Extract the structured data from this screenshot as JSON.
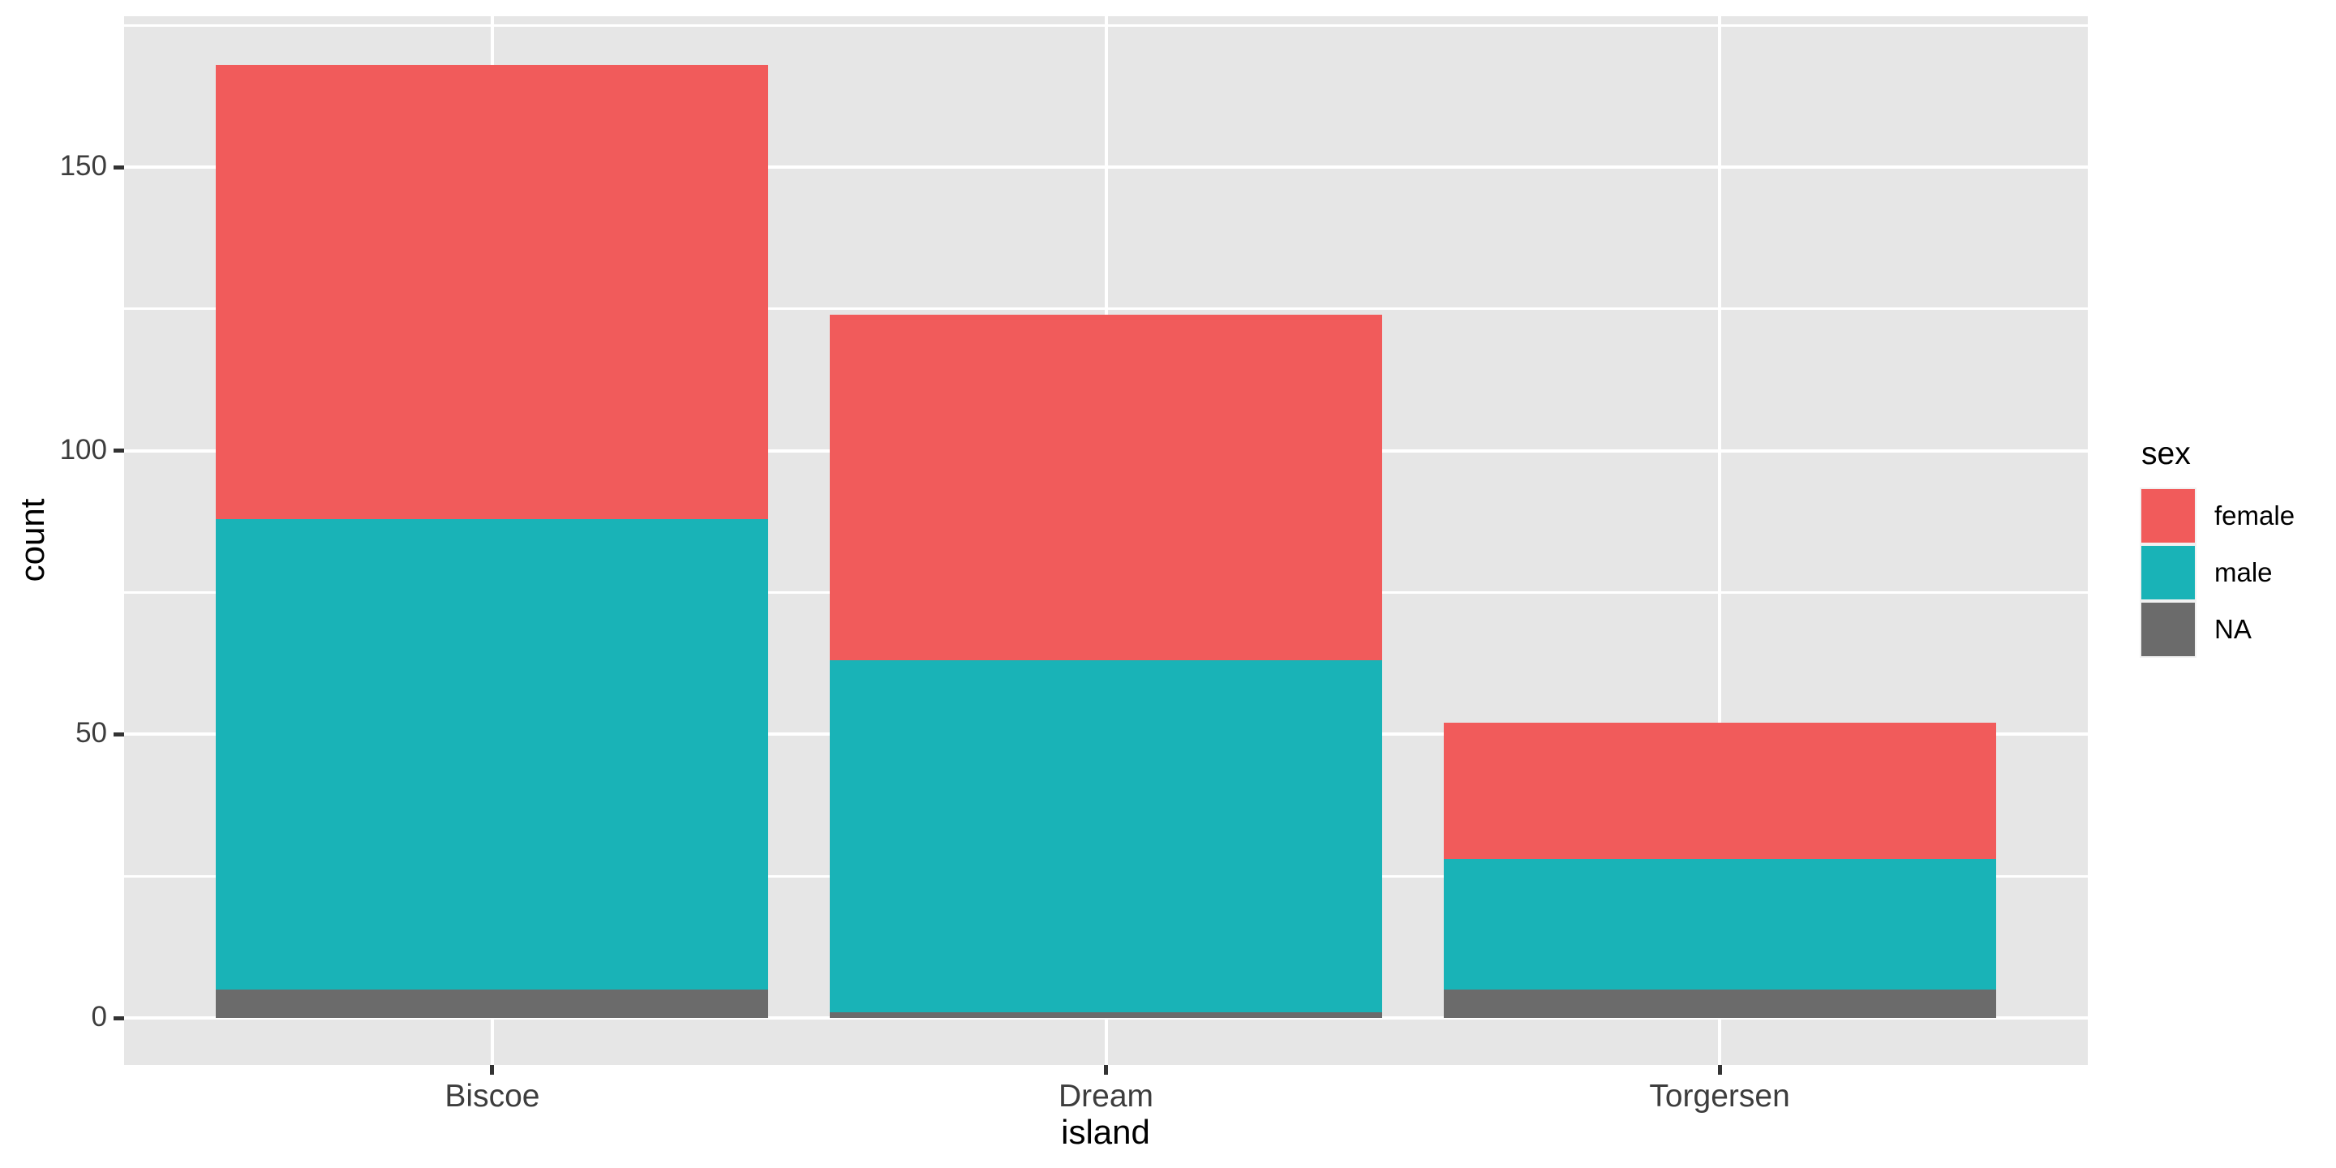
{
  "chart_data": {
    "type": "bar",
    "stacked": true,
    "title": "",
    "xlabel": "island",
    "ylabel": "count",
    "categories": [
      "Biscoe",
      "Dream",
      "Torgersen"
    ],
    "series": [
      {
        "name": "female",
        "color": "#F15B5B",
        "values": [
          80,
          61,
          24
        ]
      },
      {
        "name": "male",
        "color": "#19B3B7",
        "values": [
          83,
          62,
          23
        ]
      },
      {
        "name": "NA",
        "color": "#6B6B6B",
        "values": [
          5,
          1,
          5
        ]
      }
    ],
    "stack_order_bottom_to_top": [
      "NA",
      "male",
      "female"
    ],
    "totals": [
      168,
      124,
      52
    ],
    "y_ticks": [
      0,
      50,
      100,
      150
    ],
    "y_minor_ticks": [
      25,
      75,
      125,
      175
    ],
    "ylim": [
      -8.4,
      176.4
    ],
    "grid": {
      "major": true,
      "minor": true,
      "color": "#FFFFFF"
    },
    "legend_title": "sex",
    "legend_position": "right",
    "panel_background": "#E6E6E6"
  },
  "style": {
    "tick_color": "#333333",
    "tick_label_color": "#3d3d3d",
    "axis_title_color": "#000000",
    "page_background": "#FFFFFF"
  }
}
